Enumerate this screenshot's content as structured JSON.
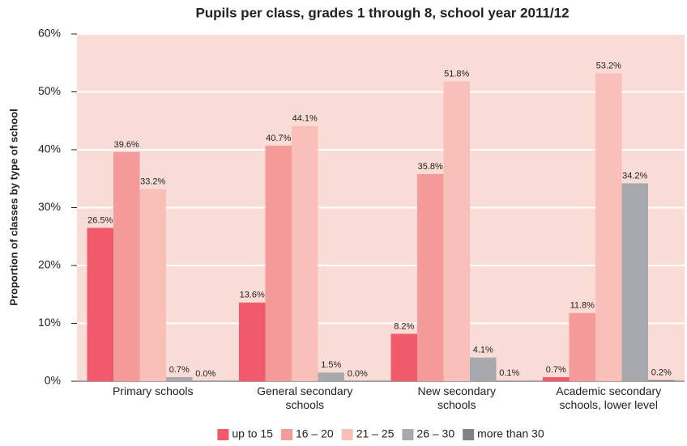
{
  "chart_data": {
    "type": "bar",
    "title": "Pupils per class, grades 1 through 8, school year 2011/12",
    "y_label": "Proportion of classes by type of school",
    "categories": [
      "Primary schools",
      "General secondary\nschools",
      "New secondary\nschools",
      "Academic secondary\nschools, lower level"
    ],
    "series": [
      {
        "name": "up to 15",
        "color": "#f05a6a",
        "values": [
          26.5,
          13.6,
          8.2,
          0.7
        ],
        "value_labels": [
          "26.5%",
          "13.6%",
          "8.2%",
          "0.7%"
        ]
      },
      {
        "name": "16 – 20",
        "color": "#f49a98",
        "values": [
          39.6,
          40.7,
          35.8,
          11.8
        ],
        "value_labels": [
          "39.6%",
          "40.7%",
          "35.8%",
          "11.8%"
        ]
      },
      {
        "name": "21 – 25",
        "color": "#f9bfb9",
        "values": [
          33.2,
          44.1,
          51.8,
          53.2
        ],
        "value_labels": [
          "33.2%",
          "44.1%",
          "51.8%",
          "53.2%"
        ]
      },
      {
        "name": "26 – 30",
        "color": "#a7a9ac",
        "values": [
          0.7,
          1.5,
          4.1,
          34.2
        ],
        "value_labels": [
          "0.7%",
          "1.5%",
          "4.1%",
          "34.2%"
        ]
      },
      {
        "name": "more than 30",
        "color": "#808285",
        "values": [
          0.0,
          0.0,
          0.1,
          0.2
        ],
        "value_labels": [
          "0.0%",
          "0.0%",
          "0.1%",
          "0.2%"
        ]
      }
    ],
    "ylim": [
      0,
      60
    ],
    "yticks": [
      {
        "value": 0,
        "label": "0%"
      },
      {
        "value": 10,
        "label": "10%"
      },
      {
        "value": 20,
        "label": "20%"
      },
      {
        "value": 30,
        "label": "30%"
      },
      {
        "value": 40,
        "label": "40%"
      },
      {
        "value": 50,
        "label": "50%"
      },
      {
        "value": 60,
        "label": "60%"
      }
    ],
    "grid": true,
    "legend": "bottom",
    "plot_background": "#fadcd6"
  }
}
